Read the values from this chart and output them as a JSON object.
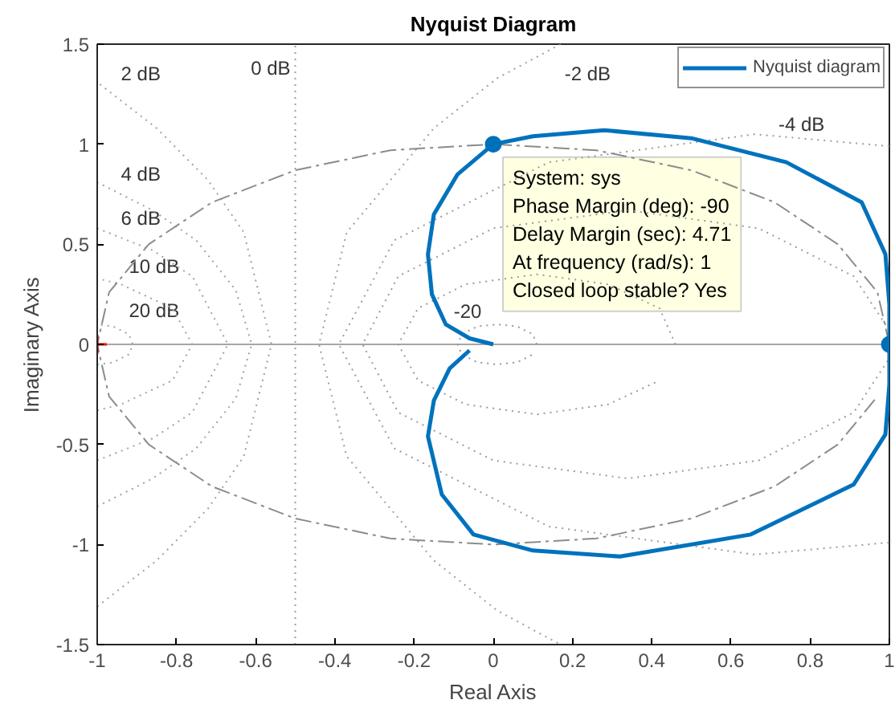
{
  "chart_data": {
    "type": "line",
    "title": "Nyquist Diagram",
    "xlabel": "Real Axis",
    "ylabel": "Imaginary Axis",
    "xlim": [
      -1,
      1
    ],
    "ylim": [
      -1.5,
      1.5
    ],
    "xticks": [
      -1,
      -0.8,
      -0.6,
      -0.4,
      -0.2,
      0,
      0.2,
      0.4,
      0.6,
      0.8,
      1
    ],
    "yticks": [
      -1.5,
      -1,
      -0.5,
      0,
      0.5,
      1,
      1.5
    ],
    "legend": "top right",
    "ref_lines": [
      {
        "axis": "x",
        "value": -0.5,
        "label": "0 dB",
        "color": "#9e9e9e",
        "line_style": "dotted"
      },
      {
        "axis": "y",
        "value": 0,
        "color": "#a6a6a6",
        "line_style": "solid"
      }
    ],
    "annotations": [
      "2 dB",
      "-2 dB",
      "4 dB",
      "-4 dB",
      "6 dB",
      "10 dB",
      "20 dB",
      "-20",
      {
        "text": "System: sys\nPhase Margin (deg): -90\nDelay Margin (sec): 4.71\nAt frequency (rad/s): 1\nClosed loop stable? Yes",
        "x": 0,
        "y": 1
      }
    ],
    "series": [
      {
        "color": "#a0a0a0",
        "line_style": "dotted",
        "x": [
          -1,
          -0.85,
          -0.72,
          -0.63,
          -0.56,
          -0.63,
          -0.72,
          -0.85,
          -1
        ],
        "values": [
          -1.31,
          -1.08,
          -0.82,
          -0.56,
          0,
          0.56,
          0.82,
          1.08,
          1.31
        ]
      },
      {
        "color": "#a1a1a1",
        "line_style": "dotted",
        "x": [
          -1,
          -0.86,
          -0.75,
          -0.65,
          -0.61,
          -0.65,
          -0.75,
          -0.86,
          -1
        ],
        "values": [
          -0.81,
          -0.67,
          -0.52,
          -0.27,
          0,
          0.27,
          0.52,
          0.67,
          0.81
        ]
      },
      {
        "color": "#a2a2a2",
        "line_style": "dotted",
        "x": [
          -1,
          -0.86,
          -0.76,
          -0.67,
          -0.76,
          -0.86,
          -1
        ],
        "values": [
          -0.58,
          -0.47,
          -0.34,
          0,
          0.34,
          0.47,
          0.58
        ]
      },
      {
        "color": "#a3a3a3",
        "line_style": "dotted",
        "x": [
          -1,
          -0.94,
          -0.81,
          -0.76,
          -0.81,
          -0.94,
          -1
        ],
        "values": [
          -0.33,
          -0.3,
          -0.18,
          0,
          0.18,
          0.3,
          0.33
        ]
      },
      {
        "color": "#a4a4a4",
        "line_style": "dotted",
        "x": [
          -1,
          -0.96,
          -0.92,
          -0.91,
          -0.92,
          -0.96,
          -1
        ],
        "values": [
          -0.1,
          -0.09,
          -0.05,
          0,
          0.05,
          0.09,
          0.1
        ]
      },
      {
        "color": "#9f9f9f",
        "line_style": "dotted",
        "x": [
          0.17,
          0.01,
          -0.15,
          -0.37,
          -0.44,
          -0.37,
          -0.15,
          0.01,
          0.17
        ],
        "values": [
          1.5,
          1.33,
          1.08,
          0.56,
          0,
          -0.56,
          -1.08,
          -1.33,
          -1.5
        ]
      },
      {
        "color": "#9d9d9d",
        "line_style": "dotted",
        "x": [
          1,
          0.66,
          0.14,
          -0.25,
          -0.39,
          -0.25,
          0.14,
          0.66,
          1
        ],
        "values": [
          0.99,
          1.05,
          0.91,
          0.52,
          0,
          -0.52,
          -0.91,
          -1.05,
          -0.99
        ]
      },
      {
        "color": "#9c9c9c",
        "line_style": "dotted",
        "x": [
          1,
          0.91,
          0.67,
          0.34,
          0,
          -0.24,
          -0.33,
          -0.24,
          0,
          0.34,
          0.67,
          0.91,
          1
        ],
        "values": [
          0.07,
          0.34,
          0.58,
          0.67,
          0.58,
          0.34,
          0,
          -0.34,
          -0.58,
          -0.67,
          -0.58,
          -0.34,
          -0.07
        ]
      },
      {
        "color": "#9b9b9b",
        "line_style": "dotted",
        "x": [
          0.46,
          0.42,
          0.29,
          0.11,
          -0.07,
          -0.19,
          -0.24,
          -0.19,
          -0.07,
          0.11,
          0.29,
          0.42
        ],
        "values": [
          0,
          0.18,
          0.3,
          0.35,
          0.3,
          0.18,
          0,
          -0.18,
          -0.3,
          -0.35,
          -0.3,
          -0.18
        ]
      },
      {
        "color": "#9a9a9a",
        "line_style": "dotted",
        "x": [
          0.11,
          0.1,
          0.06,
          0.01,
          -0.04,
          -0.08,
          -0.09,
          -0.08,
          -0.04,
          0.01,
          0.06,
          0.1
        ],
        "values": [
          0,
          0.05,
          0.09,
          0.1,
          0.09,
          0.05,
          0,
          -0.05,
          -0.09,
          -0.1,
          -0.09,
          -0.05
        ]
      },
      {
        "color": "#8c8c8c",
        "line_style": "dashed",
        "x": [
          1,
          0.97,
          0.87,
          0.71,
          0.5,
          0.26,
          0,
          -0.26,
          -0.5,
          -0.71,
          -0.87,
          -0.97,
          -1,
          -0.97,
          -0.87,
          -0.71,
          -0.5,
          -0.26,
          0,
          0.26,
          0.5,
          0.71,
          0.87,
          0.97
        ],
        "values": [
          0,
          0.26,
          0.5,
          0.71,
          0.87,
          0.97,
          1,
          0.97,
          0.87,
          0.71,
          0.5,
          0.26,
          0,
          -0.26,
          -0.5,
          -0.71,
          -0.87,
          -0.97,
          -1,
          -0.97,
          -0.87,
          -0.71,
          -0.5,
          -0.26
        ]
      },
      {
        "name": "Nyquist diagram",
        "color": "#0072bd",
        "line_style": "solid",
        "x": [
          0,
          -0.06,
          -0.12,
          -0.155,
          -0.165,
          -0.15,
          -0.09,
          0,
          0.1,
          0.28,
          0.5,
          0.74,
          0.93,
          0.99,
          1,
          1,
          1,
          0.99,
          0.91,
          0.65,
          0.32,
          0.1,
          -0.05,
          -0.13,
          -0.165,
          -0.15,
          -0.11,
          -0.06
        ],
        "values": [
          0,
          0.03,
          0.1,
          0.25,
          0.45,
          0.65,
          0.85,
          1,
          1.04,
          1.07,
          1.03,
          0.91,
          0.71,
          0.45,
          0.2,
          0,
          -0.2,
          -0.45,
          -0.7,
          -0.95,
          -1.06,
          -1.03,
          -0.95,
          -0.75,
          -0.46,
          -0.28,
          -0.12,
          -0.03
        ]
      },
      {
        "type": "scatter",
        "color": "#0070bb",
        "marker": "circle",
        "x": [
          0,
          1
        ],
        "values": [
          1,
          0
        ]
      },
      {
        "type": "scatter",
        "color": "#ff0000",
        "marker": "cross",
        "x": [
          -1
        ],
        "values": [
          0
        ]
      }
    ]
  }
}
